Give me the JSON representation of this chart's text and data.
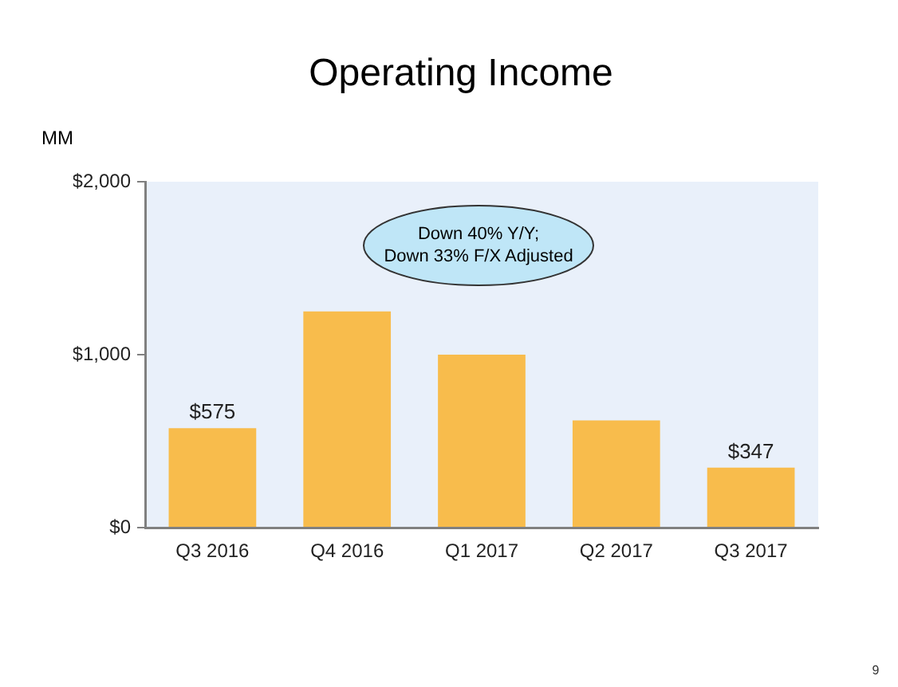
{
  "chart_data": {
    "type": "bar",
    "title": "Operating Income",
    "ylabel": "MM",
    "categories": [
      "Q3 2016",
      "Q4 2016",
      "Q1 2017",
      "Q2 2017",
      "Q3 2017"
    ],
    "values": [
      575,
      1250,
      1000,
      620,
      347
    ],
    "value_labels": [
      "$575",
      null,
      null,
      null,
      "$347"
    ],
    "color": "#f8bc4c",
    "ylim": [
      0,
      2000
    ],
    "yticks": [
      {
        "value": 0,
        "label": "$0"
      },
      {
        "value": 1000,
        "label": "$1,000"
      },
      {
        "value": 2000,
        "label": "$2,000"
      }
    ],
    "annotations": [
      "Down 40% Y/Y;\nDown 33% F/X Adjusted",
      "9"
    ]
  }
}
